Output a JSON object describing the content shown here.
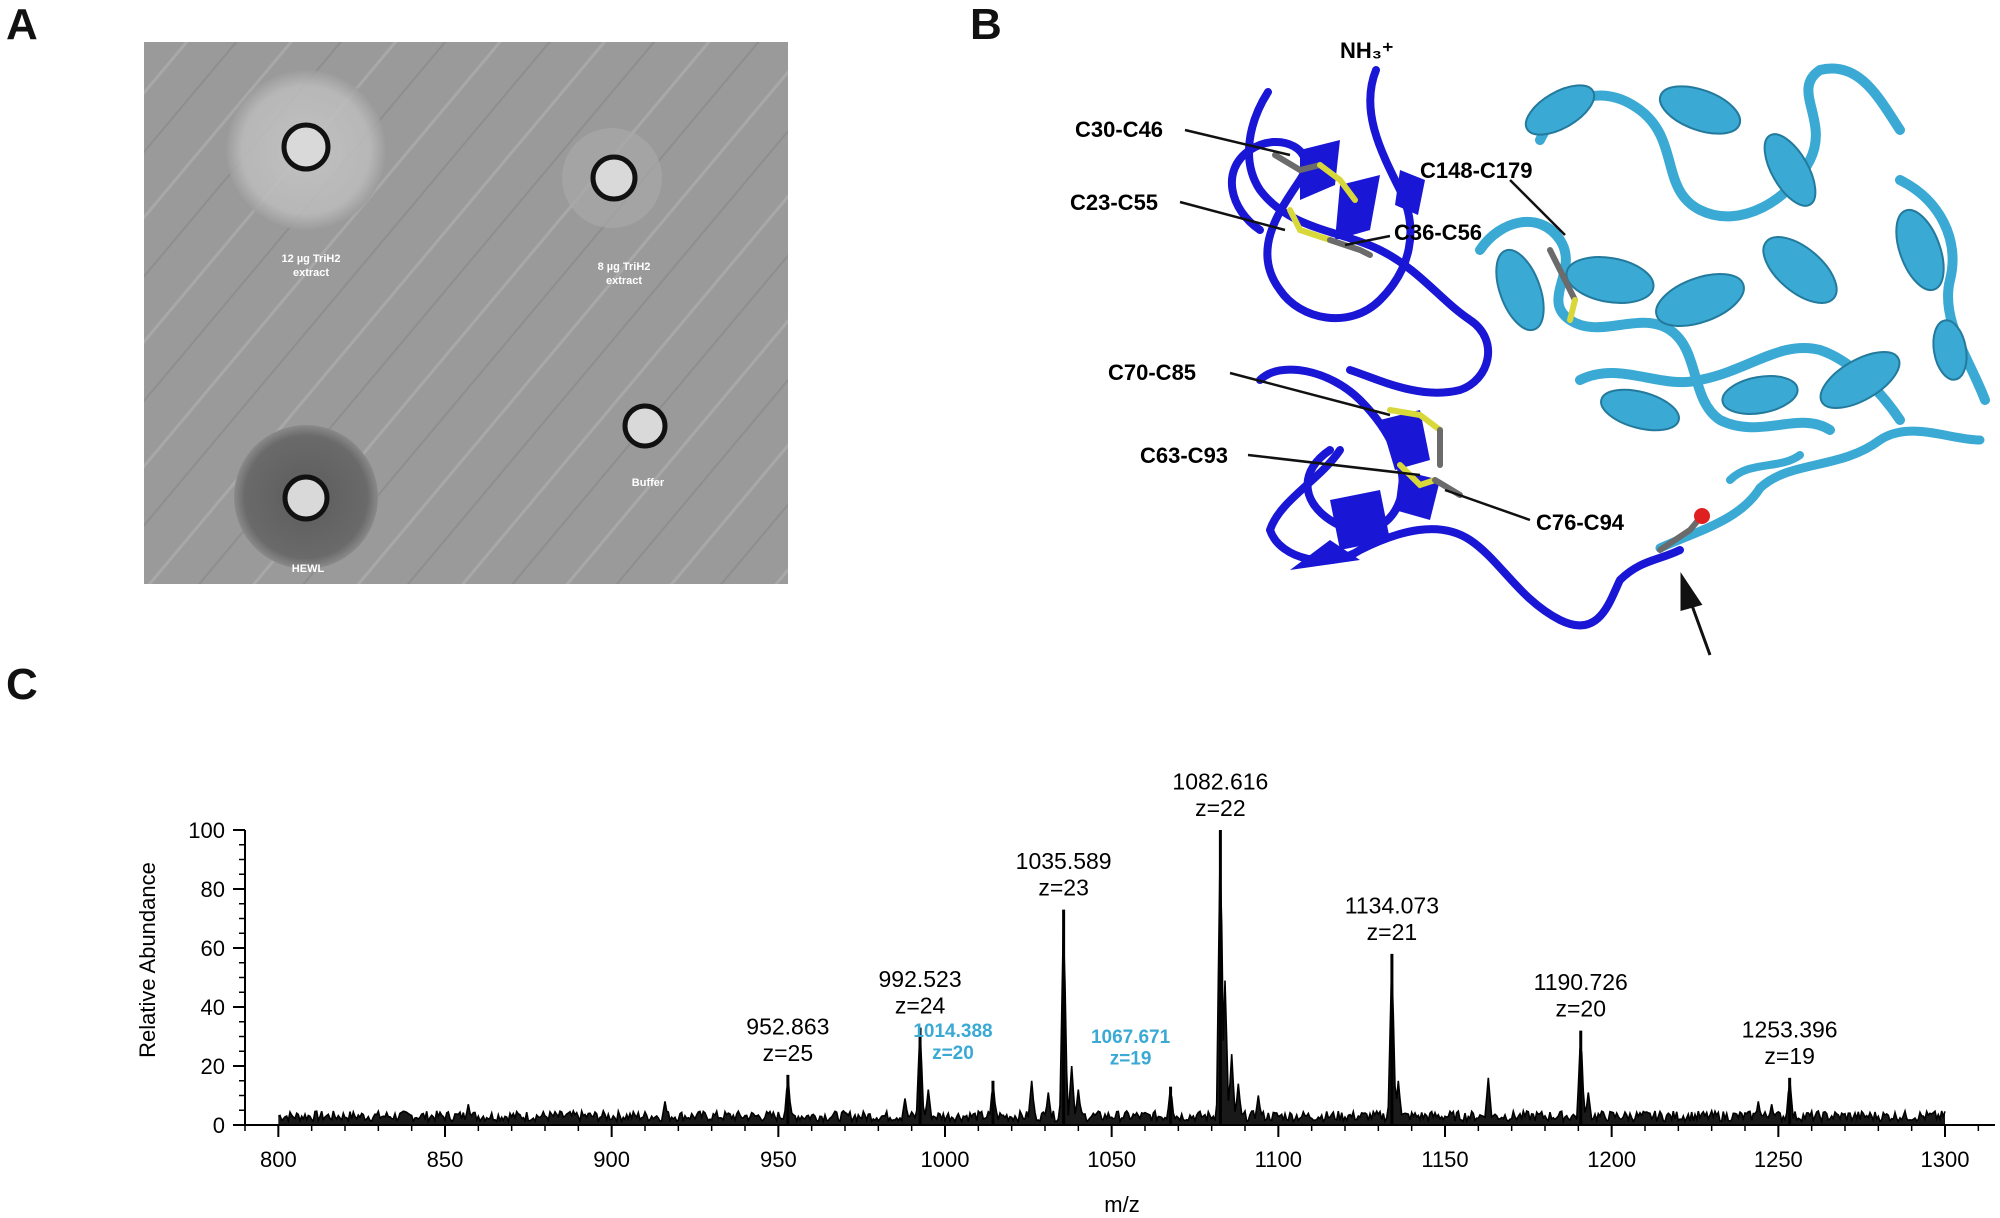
{
  "panels": {
    "a": {
      "letter": "A",
      "wells": [
        {
          "label_line1": "12 µg TriH2",
          "label_line2": "extract",
          "halo": "light"
        },
        {
          "label_line1": "8 µg TriH2",
          "label_line2": "extract",
          "halo": "faint"
        },
        {
          "label_line1": "HEWL",
          "label_line2": "",
          "halo": "dark"
        },
        {
          "label_line1": "Buffer",
          "label_line2": "",
          "halo": "none"
        }
      ]
    },
    "b": {
      "letter": "B",
      "terminus_label": "NH₃⁺",
      "disulfides": [
        "C30-C46",
        "C23-C55",
        "C36-C56",
        "C148-C179",
        "C70-C85",
        "C63-C93",
        "C76-C94"
      ],
      "colors": {
        "domain_n": "#1a16d6",
        "domain_c": "#3aa9d4",
        "sulfur": "#d8d83a",
        "bond": "#6b6b6b",
        "oxygen": "#e02020"
      }
    },
    "c": {
      "letter": "C"
    }
  },
  "chart_data": {
    "type": "line",
    "title": "",
    "xlabel": "m/z",
    "ylabel": "Relative Abundance",
    "xlim": [
      790,
      1315
    ],
    "ylim": [
      0,
      100
    ],
    "xticks": [
      800,
      850,
      900,
      950,
      1000,
      1050,
      1100,
      1150,
      1200,
      1250,
      1300
    ],
    "yticks": [
      0,
      20,
      40,
      60,
      80,
      100
    ],
    "line_color": "#000000",
    "baseline": 4,
    "peaks": [
      {
        "x": 952.863,
        "y": 17,
        "label": "952.863",
        "charge": "z=25",
        "color": "#000000"
      },
      {
        "x": 992.523,
        "y": 33,
        "label": "992.523",
        "charge": "z=24",
        "color": "#000000"
      },
      {
        "x": 1014.388,
        "y": 15,
        "label": "1014.388",
        "charge": "z=20",
        "color": "#3aa9d4"
      },
      {
        "x": 1035.589,
        "y": 73,
        "label": "1035.589",
        "charge": "z=23",
        "color": "#000000"
      },
      {
        "x": 1067.671,
        "y": 13,
        "label": "1067.671",
        "charge": "z=19",
        "color": "#3aa9d4"
      },
      {
        "x": 1082.616,
        "y": 100,
        "label": "1082.616",
        "charge": "z=22",
        "color": "#000000"
      },
      {
        "x": 1134.073,
        "y": 58,
        "label": "1134.073",
        "charge": "z=21",
        "color": "#000000"
      },
      {
        "x": 1190.726,
        "y": 32,
        "label": "1190.726",
        "charge": "z=20",
        "color": "#000000"
      },
      {
        "x": 1253.396,
        "y": 16,
        "label": "1253.396",
        "charge": "z=19",
        "color": "#000000"
      }
    ],
    "minor_peaks": [
      {
        "x": 857,
        "y": 7
      },
      {
        "x": 916,
        "y": 8
      },
      {
        "x": 988,
        "y": 9
      },
      {
        "x": 995,
        "y": 12
      },
      {
        "x": 1026,
        "y": 15
      },
      {
        "x": 1031,
        "y": 11
      },
      {
        "x": 1038,
        "y": 20
      },
      {
        "x": 1040,
        "y": 12
      },
      {
        "x": 1084,
        "y": 49
      },
      {
        "x": 1086,
        "y": 24
      },
      {
        "x": 1088,
        "y": 14
      },
      {
        "x": 1094,
        "y": 10
      },
      {
        "x": 1136,
        "y": 15
      },
      {
        "x": 1163,
        "y": 16
      },
      {
        "x": 1193,
        "y": 11
      },
      {
        "x": 1244,
        "y": 8
      },
      {
        "x": 1248,
        "y": 7
      }
    ]
  }
}
